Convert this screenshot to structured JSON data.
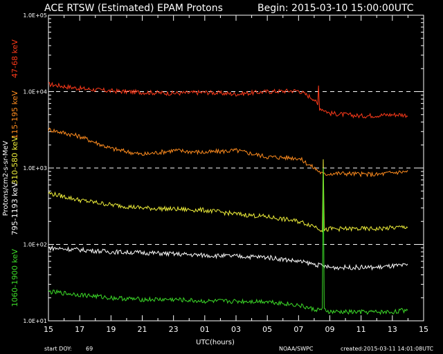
{
  "chart_data": {
    "type": "line",
    "title": "ACE RTSW (Estimated) EPAM Protons",
    "begin_text": "Begin: 2015-03-10 15:00:00UTC",
    "xlabel": "UTC(hours)",
    "ylabel": "Protons/cm2-s-sr-MeV",
    "yscale": "log",
    "ylim": [
      10,
      100000
    ],
    "ytick_labels": [
      "1.0E+01",
      "1.0E+02",
      "1.0E+03",
      "1.0E+04",
      "1.0E+05"
    ],
    "xticks": [
      "15",
      "17",
      "19",
      "21",
      "23",
      "01",
      "03",
      "05",
      "07",
      "09",
      "11",
      "13",
      "15"
    ],
    "dashed_levels": [
      100,
      1000,
      10000
    ],
    "grid": false,
    "footer": {
      "start_doy_label": "start DOY:",
      "start_doy_value": "69",
      "source": "NOAA/SWPC",
      "created": "created:2015-03-11 14:01:08UTC"
    },
    "series": [
      {
        "name": "47-68 keV",
        "color": "#ff3a1a",
        "x": [
          0,
          2,
          4,
          6,
          8,
          10,
          12,
          14,
          16,
          17,
          17.3,
          17.6,
          18,
          19,
          20,
          21,
          22,
          22.5,
          23
        ],
        "values": [
          12500,
          11000,
          10200,
          9800,
          9500,
          9800,
          9300,
          10000,
          10300,
          8000,
          6200,
          5800,
          5200,
          5000,
          4800,
          4900,
          5000,
          5000,
          4900
        ],
        "spike": {
          "x": 17.3,
          "value": 12000
        }
      },
      {
        "name": "115-195 keV",
        "color": "#ff8c1e",
        "x": [
          0,
          2,
          4,
          6,
          8,
          10,
          12,
          14,
          16,
          17,
          17.6,
          18,
          19,
          20,
          21,
          22,
          23
        ],
        "values": [
          3200,
          2600,
          1800,
          1500,
          1700,
          1600,
          1700,
          1400,
          1350,
          1000,
          820,
          850,
          850,
          830,
          820,
          870,
          900
        ]
      },
      {
        "name": "310-580 keV",
        "color": "#f0f03a",
        "x": [
          0,
          2,
          4,
          6,
          8,
          10,
          12,
          14,
          16,
          17,
          17.6,
          18,
          19,
          20,
          21,
          22,
          23
        ],
        "values": [
          470,
          380,
          330,
          300,
          290,
          280,
          250,
          230,
          200,
          175,
          150,
          160,
          160,
          160,
          160,
          165,
          170
        ],
        "spike": {
          "x": 17.6,
          "value": 1300
        }
      },
      {
        "name": "795-1193 keV",
        "color": "#ffffff",
        "x": [
          0,
          2,
          4,
          6,
          8,
          10,
          12,
          14,
          16,
          17,
          18,
          19,
          20,
          21,
          22,
          23
        ],
        "values": [
          90,
          85,
          80,
          78,
          75,
          72,
          70,
          68,
          60,
          55,
          50,
          50,
          50,
          50,
          52,
          53
        ]
      },
      {
        "name": "1060-1900 keV",
        "color": "#3cdc28",
        "x": [
          0,
          2,
          4,
          6,
          8,
          10,
          12,
          14,
          16,
          17,
          17.6,
          18,
          19,
          20,
          21,
          22,
          23
        ],
        "values": [
          24,
          22,
          20,
          19,
          19,
          18,
          18,
          18,
          16,
          14,
          14,
          13,
          13,
          13,
          13,
          13,
          14
        ],
        "spike": {
          "x": 17.6,
          "value": 1000
        }
      }
    ]
  }
}
